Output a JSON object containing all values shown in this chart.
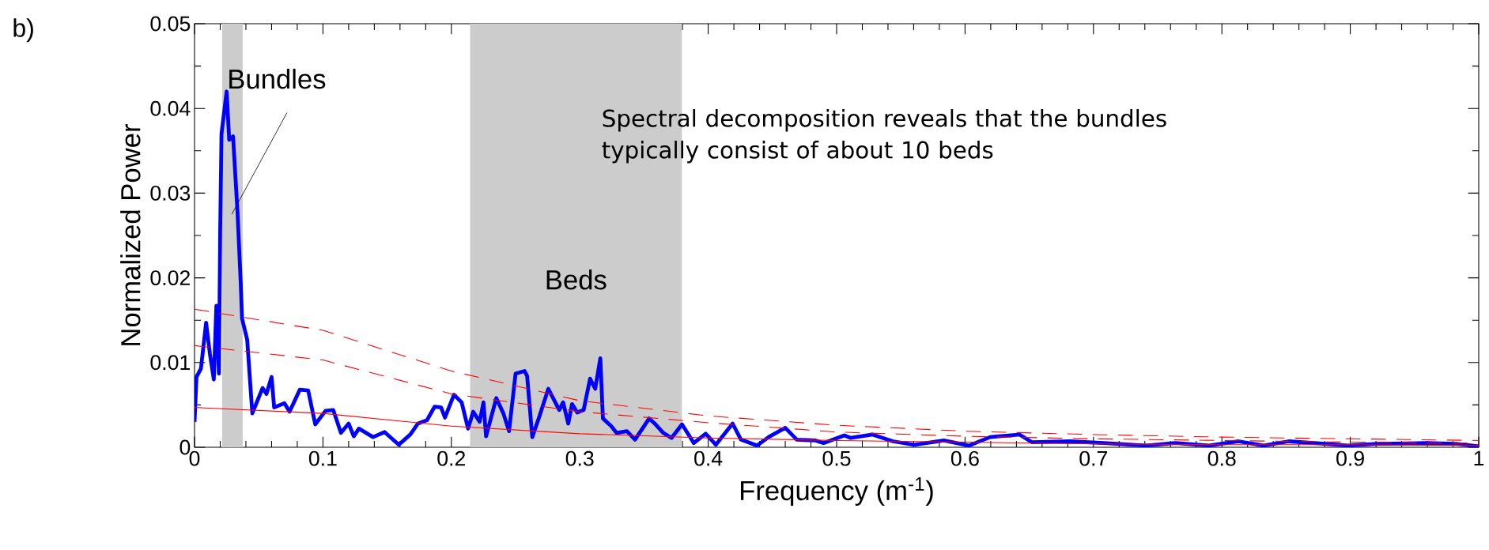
{
  "chart_data": {
    "type": "line",
    "xlabel": "Frequency (m$^{-1}$)",
    "ylabel": "Normalized Power",
    "xlim": [
      0,
      1
    ],
    "ylim": [
      0,
      0.05
    ],
    "xticks": [
      0,
      0.1,
      0.2,
      0.3,
      0.4,
      0.5,
      0.6,
      0.7,
      0.8,
      0.9,
      1
    ],
    "yticks": [
      0,
      0.01,
      0.02,
      0.03,
      0.04,
      0.05
    ],
    "marker": "none",
    "bands": [
      {
        "axis": "x",
        "from": 0.0215,
        "to": 0.0375,
        "label": "Bundles",
        "color": "#cccccc"
      },
      {
        "axis": "x",
        "from": 0.2145,
        "to": 0.3795,
        "label": "Beds",
        "color": "#cccccc"
      }
    ],
    "annotations": [
      "b)",
      "Spectral decomposition reveals that the bundles typically consist of about 10 beds"
    ],
    "series": [
      {
        "color": "#0000ff",
        "line_style": "solid",
        "x": [
          0,
          0.0015,
          0.005,
          0.009,
          0.012,
          0.015,
          0.017,
          0.019,
          0.02,
          0.021,
          0.025,
          0.027,
          0.03,
          0.0335,
          0.036,
          0.037,
          0.041,
          0.045,
          0.053,
          0.056,
          0.06,
          0.062,
          0.07,
          0.074,
          0.082,
          0.0885,
          0.094,
          0.102,
          0.108,
          0.114,
          0.12,
          0.124,
          0.128,
          0.139,
          0.148,
          0.159,
          0.168,
          0.174,
          0.181,
          0.187,
          0.192,
          0.195,
          0.202,
          0.208,
          0.213,
          0.217,
          0.222,
          0.225,
          0.227,
          0.235,
          0.2405,
          0.2449,
          0.25,
          0.257,
          0.259,
          0.263,
          0.268,
          0.2755,
          0.284,
          0.287,
          0.291,
          0.294,
          0.298,
          0.303,
          0.308,
          0.312,
          0.316,
          0.318,
          0.3245,
          0.3286,
          0.3367,
          0.343,
          0.354,
          0.359,
          0.365,
          0.3714,
          0.3796,
          0.3888,
          0.398,
          0.406,
          0.419,
          0.4255,
          0.438,
          0.447,
          0.46,
          0.469,
          0.4837,
          0.4898,
          0.506,
          0.511,
          0.528,
          0.544,
          0.5604,
          0.5835,
          0.603,
          0.6195,
          0.6425,
          0.652,
          0.6816,
          0.708,
          0.741,
          0.7637,
          0.79,
          0.813,
          0.8326,
          0.852,
          0.872,
          0.898,
          0.921,
          0.96,
          0.983,
          1.0
        ],
        "values": [
          0.003,
          0.0083,
          0.0093,
          0.0147,
          0.011,
          0.008,
          0.0167,
          0.0087,
          0.0257,
          0.037,
          0.042,
          0.0363,
          0.0367,
          0.0277,
          0.0193,
          0.0152,
          0.0127,
          0.004,
          0.007,
          0.0063,
          0.0083,
          0.0047,
          0.0052,
          0.0042,
          0.0068,
          0.0067,
          0.0027,
          0.0043,
          0.0044,
          0.0017,
          0.0028,
          0.0013,
          0.0022,
          0.0012,
          0.0018,
          0.0003,
          0.0015,
          0.0028,
          0.0032,
          0.0048,
          0.0047,
          0.0035,
          0.0062,
          0.0053,
          0.0022,
          0.0042,
          0.003,
          0.0053,
          0.0013,
          0.0058,
          0.004,
          0.0019,
          0.0087,
          0.009,
          0.0084,
          0.0012,
          0.0034,
          0.0069,
          0.0044,
          0.0053,
          0.0028,
          0.0051,
          0.0041,
          0.0044,
          0.0081,
          0.0069,
          0.0105,
          0.0034,
          0.0025,
          0.0017,
          0.0019,
          0.0009,
          0.0034,
          0.0027,
          0.0017,
          0.0011,
          0.0027,
          0.0005,
          0.0016,
          0.0003,
          0.0028,
          0.0009,
          0.0002,
          0.0012,
          0.0023,
          0.0009,
          0.0008,
          0.0005,
          0.0014,
          0.0011,
          0.0015,
          0.0007,
          0.0003,
          0.0008,
          0.0002,
          0.0012,
          0.0015,
          0.0006,
          0.0007,
          0.0005,
          0.0002,
          0.0005,
          0.0002,
          0.0007,
          0.0002,
          0.0007,
          0.0005,
          0.0002,
          0.0004,
          0.0005,
          0.0004,
          0.0001
        ]
      },
      {
        "color": "#ff0000",
        "line_style": "solid",
        "x": [
          0,
          0.1,
          0.2,
          0.3,
          0.4,
          0.5,
          0.6,
          0.7,
          0.8,
          0.9,
          1
        ],
        "values": [
          0.0047,
          0.004,
          0.0025,
          0.0016,
          0.0011,
          0.0008,
          0.0006,
          0.0004,
          0.0003,
          0.0003,
          0.0002
        ]
      },
      {
        "color": "#ff0000",
        "line_style": "dashed",
        "x": [
          0,
          0.1,
          0.2,
          0.3,
          0.4,
          0.5,
          0.6,
          0.7,
          0.8,
          0.9,
          1
        ],
        "values": [
          0.012,
          0.0103,
          0.0063,
          0.0042,
          0.0029,
          0.0018,
          0.0013,
          0.001,
          0.0008,
          0.0006,
          0.0005
        ]
      },
      {
        "color": "#ff0000",
        "line_style": "dashed",
        "x": [
          0,
          0.1,
          0.2,
          0.3,
          0.4,
          0.5,
          0.6,
          0.7,
          0.8,
          0.9,
          1
        ],
        "values": [
          0.0163,
          0.0138,
          0.009,
          0.0055,
          0.0037,
          0.0026,
          0.0019,
          0.0015,
          0.0012,
          0.001,
          0.0008
        ]
      }
    ]
  }
}
